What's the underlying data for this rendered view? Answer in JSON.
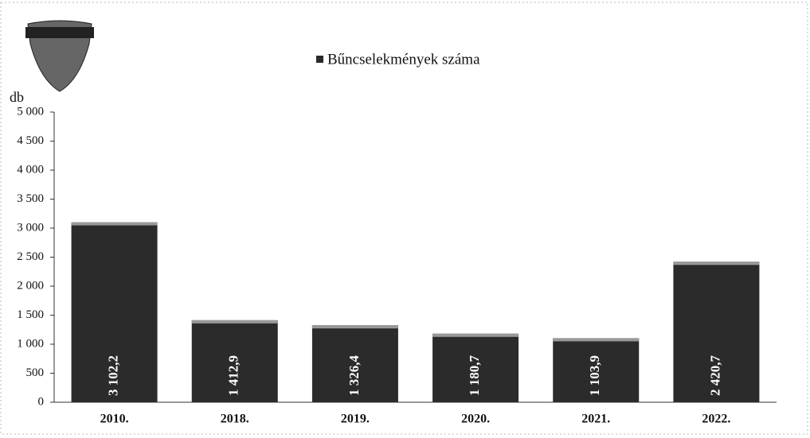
{
  "chart_data": {
    "type": "bar",
    "legend": "Bűncselekmények száma",
    "y_label": "db",
    "categories": [
      "2010.",
      "2018.",
      "2019.",
      "2020.",
      "2021.",
      "2022."
    ],
    "values": [
      3102.2,
      1412.9,
      1326.4,
      1180.7,
      1103.9,
      2420.7
    ],
    "value_labels": [
      "3 102,2",
      "1 412,9",
      "1 326,4",
      "1 180,7",
      "1 103,9",
      "2 420,7"
    ],
    "color": "#2b2b2b",
    "ylim": [
      0,
      5000
    ],
    "yticks": [
      0,
      500,
      {
        "value": 1000,
        "label": "1 000"
      },
      {
        "value": 1500,
        "label": "1 500"
      },
      {
        "value": 2000,
        "label": "2 000"
      },
      {
        "value": 2500,
        "label": "2 500"
      },
      {
        "value": 3000,
        "label": "3 000"
      },
      {
        "value": 3500,
        "label": "3 500"
      },
      {
        "value": 4000,
        "label": "4 000"
      },
      {
        "value": 4500,
        "label": "4 500"
      },
      {
        "value": 5000,
        "label": "5 000"
      }
    ],
    "grid": false
  }
}
